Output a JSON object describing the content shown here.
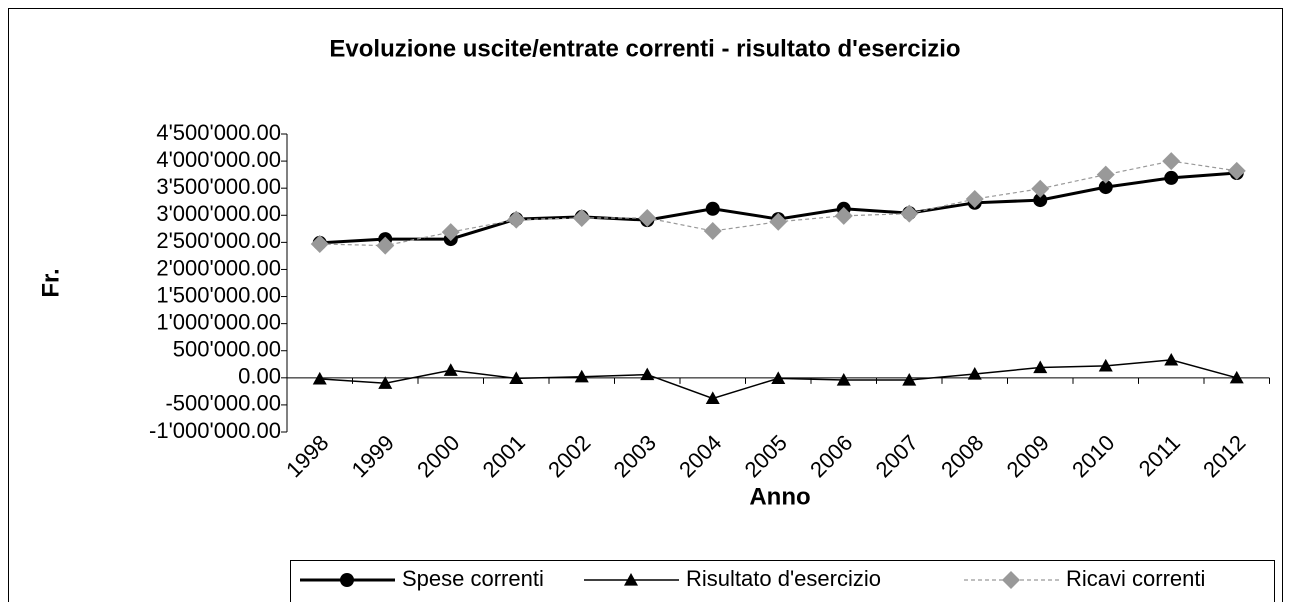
{
  "chart_data": {
    "type": "line",
    "title": "Evoluzione uscite/entrate correnti - risultato d'esercizio",
    "x_label": "Anno",
    "y_label": "Fr.",
    "categories": [
      "1998",
      "1999",
      "2000",
      "2001",
      "2002",
      "2003",
      "2004",
      "2005",
      "2006",
      "2007",
      "2008",
      "2009",
      "2010",
      "2011",
      "2012"
    ],
    "series": [
      {
        "name": "Spese correnti",
        "color": "#000000",
        "marker": "circle",
        "line_style": "solid",
        "values": [
          2490000,
          2560000,
          2560000,
          2930000,
          2970000,
          2910000,
          3120000,
          2930000,
          3120000,
          3040000,
          3230000,
          3280000,
          3520000,
          3690000,
          3780000
        ]
      },
      {
        "name": "Risultato d'esercizio",
        "color": "#000000",
        "marker": "triangle",
        "line_style": "solid",
        "values": [
          -20000,
          -100000,
          140000,
          -10000,
          20000,
          60000,
          -380000,
          -10000,
          -40000,
          -40000,
          70000,
          190000,
          220000,
          330000,
          0
        ]
      },
      {
        "name": "Ricavi correnti",
        "color": "#999999",
        "marker": "diamond",
        "line_style": "dashed",
        "values": [
          2470000,
          2440000,
          2690000,
          2920000,
          2950000,
          2950000,
          2710000,
          2880000,
          2990000,
          3030000,
          3300000,
          3490000,
          3750000,
          4000000,
          3820000
        ]
      }
    ],
    "ylim": [
      -1000000,
      4500000
    ],
    "yticks": [
      {
        "value": -1000000,
        "label": "-1'000'000.00"
      },
      {
        "value": -500000,
        "label": "-500'000.00"
      },
      {
        "value": 0,
        "label": "0.00"
      },
      {
        "value": 500000,
        "label": "500'000.00"
      },
      {
        "value": 1000000,
        "label": "1'000'000.00"
      },
      {
        "value": 1500000,
        "label": "1'500'000.00"
      },
      {
        "value": 2000000,
        "label": "2'000'000.00"
      },
      {
        "value": 2500000,
        "label": "2'500'000.00"
      },
      {
        "value": 3000000,
        "label": "3'000'000.00"
      },
      {
        "value": 3500000,
        "label": "3'500'000.00"
      },
      {
        "value": 4000000,
        "label": "4'000'000.00"
      },
      {
        "value": 4500000,
        "label": "4'500'000.00"
      }
    ],
    "grid": false,
    "legend": "bottom"
  }
}
